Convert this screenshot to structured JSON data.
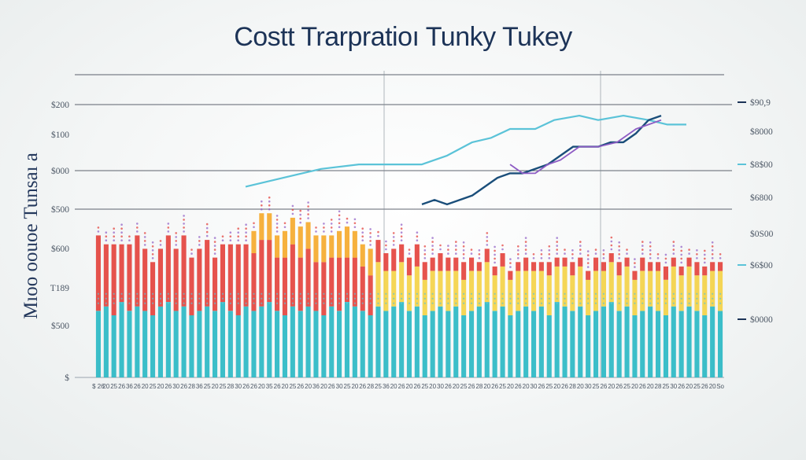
{
  "chart_data": {
    "type": "bar",
    "title": "Costt  Trarpratioı Tunky Tukey",
    "ylabel": "Mıoo oouoe Tunsaı a",
    "left_ticks": [
      "$200",
      "$100",
      "$000",
      "$500",
      "$600",
      "T189",
      "$500",
      "$"
    ],
    "right_ticks": [
      "$90,9",
      "$8000",
      "$8$00",
      "$6800",
      "$0S00",
      "$6$00",
      "$0000"
    ],
    "x_tick_labels": [
      "$ 26",
      "20",
      "25",
      "26",
      "36",
      "26",
      "20",
      "25",
      "20",
      "26",
      "30",
      "26",
      "28",
      "36",
      "25",
      "20",
      "25",
      "28",
      "30",
      "26",
      "26",
      "20",
      "35",
      "26",
      "20",
      "25",
      "26",
      "20",
      "36",
      "20",
      "26",
      "30",
      "25",
      "20",
      "26",
      "28",
      "25",
      "36",
      "20",
      "26",
      "20",
      "26",
      "25",
      "20",
      "30",
      "26",
      "20",
      "25",
      "26",
      "28",
      "20",
      "26",
      "25",
      "20",
      "26",
      "20",
      "30",
      "26",
      "25",
      "20",
      "26",
      "28",
      "20",
      "30",
      "25",
      "26",
      "20",
      "26",
      "25",
      "20",
      "26",
      "20",
      "28",
      "25",
      "30",
      "26",
      "20",
      "25",
      "26",
      "20",
      "So"
    ],
    "series": [
      {
        "values": [
          15,
          16,
          14,
          17,
          15,
          16,
          15,
          14,
          16,
          17,
          15,
          16,
          14,
          15,
          16,
          15,
          17,
          15,
          14,
          16,
          15,
          16,
          17,
          15,
          14,
          16,
          15,
          16,
          15,
          14,
          16,
          15,
          17,
          16,
          15,
          14,
          16,
          15,
          16,
          17,
          15,
          16,
          14,
          15,
          16,
          15,
          16,
          14,
          15,
          16,
          17,
          15,
          16,
          14,
          15,
          16,
          15,
          16,
          14,
          17,
          16,
          15,
          16,
          14,
          15,
          16,
          17,
          15,
          16,
          14,
          15,
          16,
          15,
          14,
          16,
          15,
          16,
          15,
          14,
          16,
          15
        ]
      },
      {
        "values": [
          17,
          14,
          16,
          13,
          15,
          16,
          14,
          12,
          13,
          15,
          14,
          16,
          13,
          14,
          15,
          12,
          13,
          15,
          16,
          14,
          13,
          15,
          14,
          12,
          13,
          14,
          12,
          13,
          11,
          12,
          11,
          12,
          10,
          11,
          10,
          9,
          10,
          9,
          8,
          9,
          8,
          9,
          8,
          9,
          8,
          9,
          8,
          8,
          9,
          8,
          9,
          8,
          9,
          8,
          9,
          8,
          9,
          8,
          9,
          8,
          9,
          8,
          9,
          8,
          9,
          8,
          9,
          8,
          9,
          8,
          9,
          8,
          9,
          8,
          9,
          8,
          9,
          8,
          9,
          8,
          9
        ]
      },
      {
        "values": [
          0,
          0,
          0,
          0,
          0,
          0,
          0,
          0,
          0,
          0,
          0,
          0,
          0,
          0,
          0,
          0,
          0,
          0,
          0,
          0,
          5,
          6,
          6,
          5,
          6,
          6,
          7,
          6,
          6,
          6,
          5,
          6,
          7,
          6,
          5,
          6,
          5,
          4,
          5,
          4,
          4,
          5,
          4,
          3,
          4,
          3,
          3,
          4,
          3,
          2,
          3,
          2,
          3,
          2,
          2,
          3,
          2,
          2,
          3,
          2,
          2,
          3,
          2,
          2,
          3,
          2,
          2,
          3,
          2,
          2,
          3,
          2,
          2,
          3,
          2,
          2,
          2,
          3,
          2,
          2,
          2
        ]
      }
    ],
    "lines": [
      {
        "x": [
          24,
          30,
          36,
          42,
          47,
          52,
          56,
          60,
          63,
          66,
          70,
          73,
          77,
          80,
          84,
          88,
          91,
          94
        ],
        "values": [
          43,
          45,
          47,
          48,
          48,
          48,
          50,
          53,
          54,
          56,
          56,
          58,
          59,
          58,
          59,
          58,
          57,
          57
        ]
      },
      {
        "x": [
          52,
          54,
          56,
          58,
          60,
          62,
          64,
          66,
          68,
          70,
          72,
          74,
          76,
          78,
          80,
          82,
          84,
          86,
          88,
          90
        ],
        "values": [
          39,
          40,
          39,
          40,
          41,
          43,
          45,
          46,
          46,
          47,
          48,
          50,
          52,
          52,
          52,
          53,
          53,
          55,
          58,
          59
        ]
      },
      {
        "x": [
          66,
          68,
          70,
          72,
          74,
          75,
          77,
          80,
          83,
          86,
          88,
          90
        ],
        "values": [
          48,
          46,
          46,
          48,
          49,
          50,
          52,
          52,
          53,
          56,
          57,
          58
        ]
      }
    ],
    "ylim": [
      0,
      70
    ],
    "legend": "none",
    "colors": {
      "teal": "#2bb8c4",
      "red": "#e23b34",
      "orange": "#f5a623",
      "yellow": "#f4d03f",
      "purple": "#8e5cc4",
      "light_blue": "#5bc3d8",
      "dark_blue": "#1a4e7a",
      "title": "#1c3357",
      "grid": "#2a3140"
    }
  }
}
